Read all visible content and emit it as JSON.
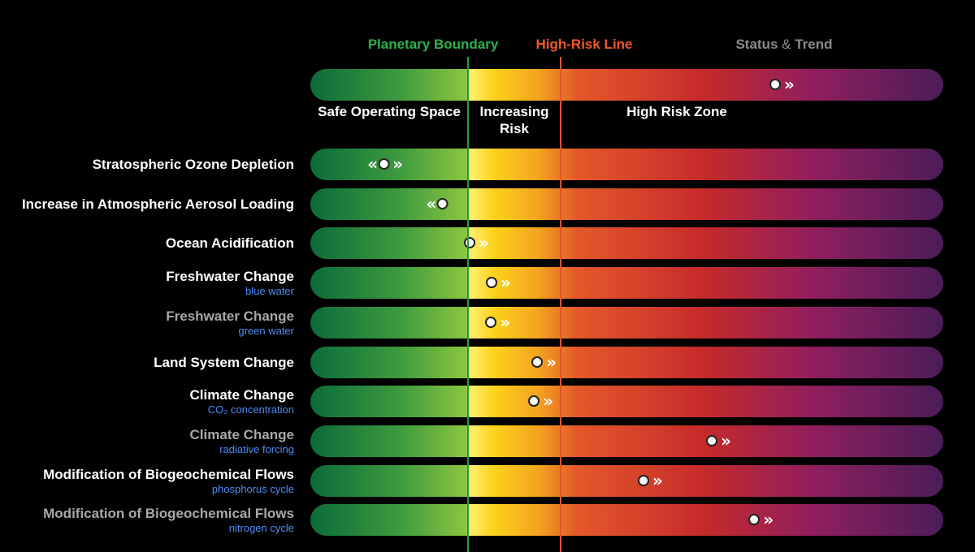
{
  "header": {
    "planetary_boundary": "Planetary Boundary",
    "high_risk_line": "High-Risk Line",
    "status": "Status",
    "amp": "&",
    "trend": "Trend"
  },
  "zones": {
    "safe": "Safe Operating Space",
    "increasing": "Increasing Risk",
    "high": "High Risk Zone"
  },
  "icons": {
    "dot": "status-dot-icon",
    "trend_right": "chevron-double-right-icon",
    "trend_left": "chevron-double-left-icon"
  },
  "legend_marker": {
    "position": 0.742,
    "trend": "increasing"
  },
  "colors": {
    "planetary_boundary": "#2bb34a",
    "high_risk_line": "#f0592a",
    "subtitle": "#4f8df5"
  },
  "chart_data": {
    "type": "table",
    "scale": "position along gradient bar (0 = left edge, 1 = right edge)",
    "planetary_boundary_position": 0.249,
    "high_risk_line_position": 0.395,
    "rows": [
      {
        "title": "Stratospheric Ozone Depletion",
        "subtitle": "",
        "position": 0.115,
        "trend": "stable",
        "dim": false
      },
      {
        "title": "Increase in Atmospheric Aerosol Loading",
        "subtitle": "",
        "position": 0.2,
        "trend": "decreasing",
        "dim": false
      },
      {
        "title": "Ocean Acidification",
        "subtitle": "",
        "position": 0.259,
        "trend": "increasing",
        "dim": false
      },
      {
        "title": "Freshwater Change",
        "subtitle": "blue water",
        "position": 0.294,
        "trend": "increasing",
        "dim": false
      },
      {
        "title": "Freshwater Change",
        "subtitle": "green water",
        "position": 0.293,
        "trend": "increasing",
        "dim": true
      },
      {
        "title": "Land System Change",
        "subtitle": "",
        "position": 0.366,
        "trend": "increasing",
        "dim": false
      },
      {
        "title": "Climate Change",
        "subtitle": "CO₂ concentration",
        "position": 0.361,
        "trend": "increasing",
        "dim": false
      },
      {
        "title": "Climate Change",
        "subtitle": "radiative forcing",
        "position": 0.642,
        "trend": "increasing",
        "dim": true
      },
      {
        "title": "Modification of Biogeochemical Flows",
        "subtitle": "phosphorus cycle",
        "position": 0.534,
        "trend": "increasing",
        "dim": false
      },
      {
        "title": "Modification of Biogeochemical Flows",
        "subtitle": "nitrogen cycle",
        "position": 0.709,
        "trend": "increasing",
        "dim": true
      }
    ]
  }
}
